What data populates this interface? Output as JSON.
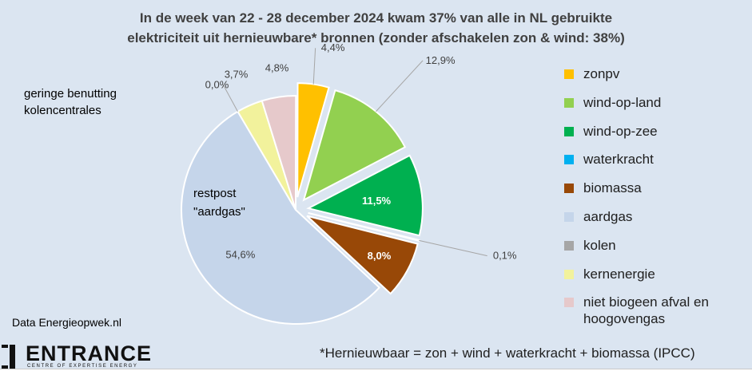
{
  "chart_data": {
    "type": "pie",
    "title": "In de week van 22 - 28 december 2024 kwam 37% van alle in NL gebruikte\nelektriciteit uit hernieuwbare* bronnen  (zonder afschakelen zon & wind: 38%)",
    "slices": [
      {
        "name": "zonpv",
        "value": 4.4,
        "label": "4,4%",
        "color": "#ffc000",
        "exploded": true
      },
      {
        "name": "wind-op-land",
        "value": 12.9,
        "label": "12,9%",
        "color": "#92d050",
        "exploded": true
      },
      {
        "name": "wind-op-zee",
        "value": 11.5,
        "label": "11,5%",
        "color": "#00b050",
        "exploded": true
      },
      {
        "name": "waterkracht",
        "value": 0.1,
        "label": "0,1%",
        "color": "#00b0f0",
        "exploded": true
      },
      {
        "name": "biomassa",
        "value": 8.0,
        "label": "8,0%",
        "color": "#984807",
        "exploded": true
      },
      {
        "name": "aardgas",
        "value": 54.6,
        "label": "54,6%",
        "color": "#c5d5ea",
        "exploded": false
      },
      {
        "name": "kolen",
        "value": 0.0,
        "label": "0,0%",
        "color": "#a6a6a6",
        "exploded": false
      },
      {
        "name": "kernenergie",
        "value": 3.7,
        "label": "3,7%",
        "color": "#f2f29c",
        "exploded": false
      },
      {
        "name": "niet biogeen afval en hoogovengas",
        "value": 4.8,
        "label": "4,8%",
        "color": "#e6c9cb",
        "exploded": false
      }
    ],
    "legend": {
      "placement": "right",
      "items": [
        "zonpv",
        "wind-op-land",
        "wind-op-zee",
        "waterkracht",
        "biomassa",
        "aardgas",
        "kolen",
        "kernenergie",
        "niet biogeen afval en\nhoogovengas"
      ]
    },
    "annotations": [
      "geringe benutting\nkolencentrales",
      "restpost\n\"aardgas\""
    ]
  },
  "source": "Data Energieopwek.nl",
  "logo": {
    "word": "ENTRANCE",
    "subtitle": "CENTRE OF EXPERTISE ENERGY"
  },
  "footnote": "*Hernieuwbaar = zon + wind + waterkracht + biomassa (IPCC)"
}
